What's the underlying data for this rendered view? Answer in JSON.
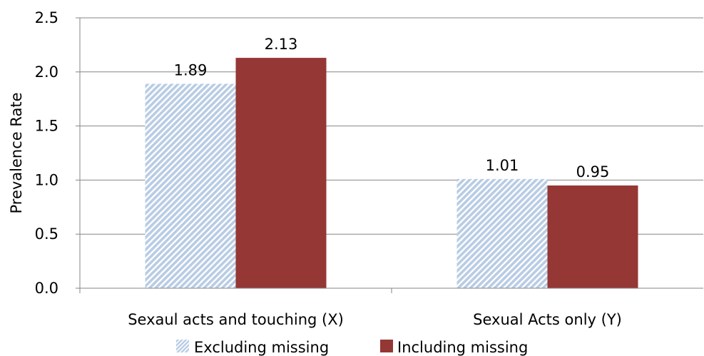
{
  "chart_data": {
    "type": "bar",
    "title": "",
    "xlabel": "",
    "ylabel": "Prevalence Rate",
    "ylim": [
      0,
      2.5
    ],
    "yticks": [
      "0.0",
      "0.5",
      "1.0",
      "1.5",
      "2.0",
      "2.5"
    ],
    "grid": true,
    "legend_position": "bottom",
    "categories": [
      "Sexaul acts and touching (X)",
      "Sexual Acts only (Y)"
    ],
    "series": [
      {
        "name": "Excluding missing",
        "values": [
          1.89,
          1.01
        ],
        "labels": [
          "1.89",
          "1.01"
        ],
        "color": "#b8cce4",
        "pattern": "diagonal-hatch"
      },
      {
        "name": "Including missing",
        "values": [
          2.13,
          0.95
        ],
        "labels": [
          "2.13",
          "0.95"
        ],
        "color": "#953735",
        "pattern": "solid"
      }
    ]
  }
}
